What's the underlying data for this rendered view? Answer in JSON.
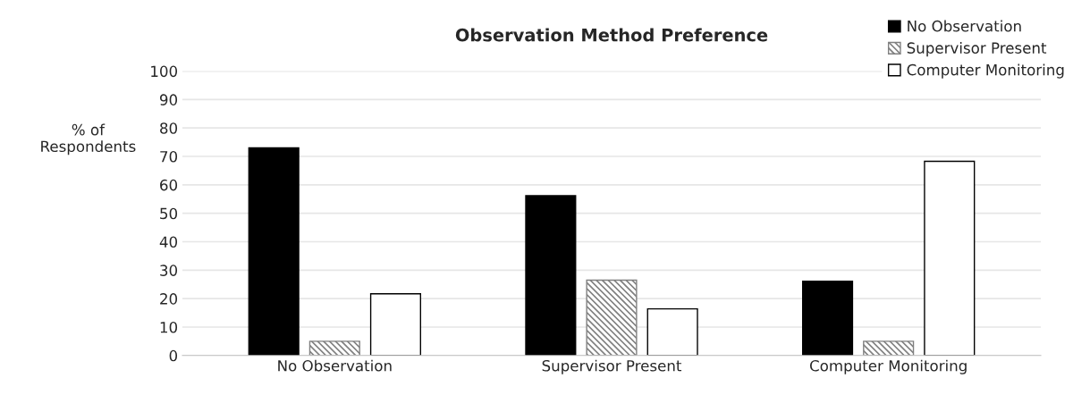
{
  "chart_data": {
    "type": "bar",
    "title": "Observation Method Preference",
    "ylabel": "% of\nRespondents",
    "categories": [
      "No Observation",
      "Supervisor Present",
      "Computer Monitoring"
    ],
    "series": [
      {
        "name": "No Observation",
        "color": "#000000",
        "values": [
          73,
          56.2,
          26.1
        ]
      },
      {
        "name": "Supervisor Present",
        "color": "#808080",
        "values": [
          5,
          26.5,
          5
        ]
      },
      {
        "name": "Computer Monitoring",
        "color": "#ffffff",
        "values": [
          21.7,
          16.4,
          68.3
        ]
      }
    ],
    "ylim": [
      0,
      100
    ],
    "yticks": [
      0,
      10,
      20,
      30,
      40,
      50,
      60,
      70,
      80,
      90,
      100
    ],
    "grid": "y",
    "legend": "top right"
  }
}
